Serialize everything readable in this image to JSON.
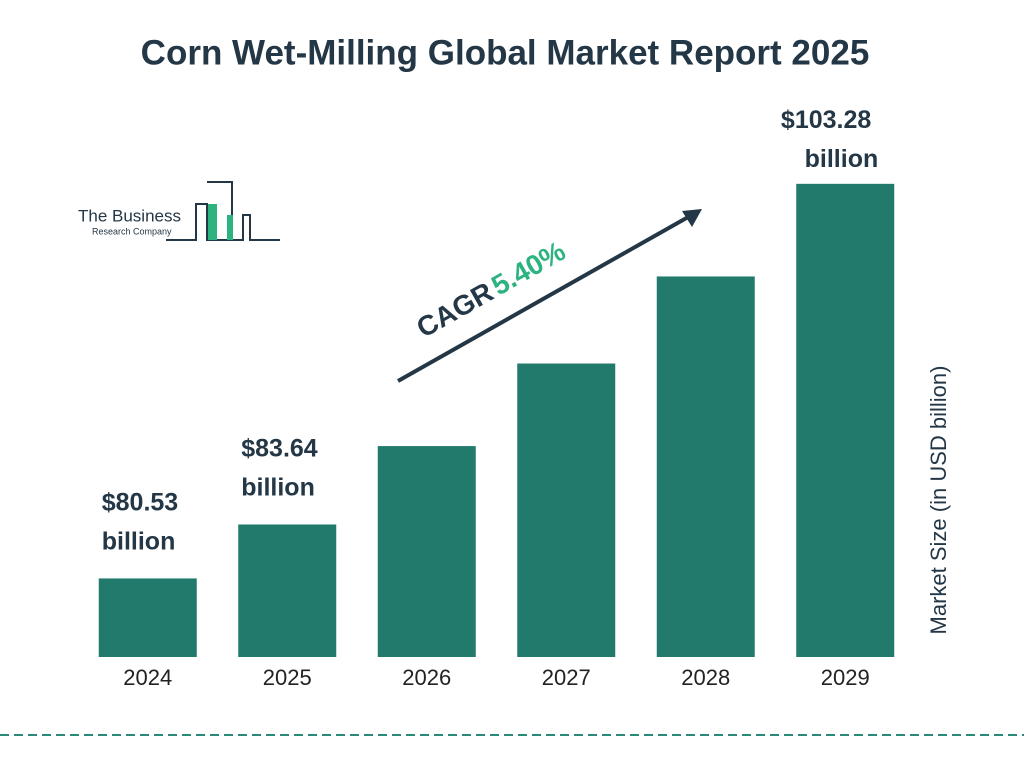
{
  "chart_data": {
    "type": "bar",
    "title": "Corn Wet-Milling Global Market Report 2025",
    "categories": [
      "2024",
      "2025",
      "2026",
      "2027",
      "2028",
      "2029"
    ],
    "values": [
      80.53,
      83.64,
      88.16,
      92.92,
      97.94,
      103.28
    ],
    "value_labels": [
      "$80.53 billion",
      "$83.64 billion",
      null,
      null,
      null,
      "$103.28 billion"
    ],
    "color": "#217a6b",
    "ylim": [
      76,
      105
    ],
    "y_axis_label": "Market Size (in USD billion)",
    "annotation": {
      "label": "CAGR",
      "value": "5.40%"
    }
  },
  "logo": {
    "line1": "The Business",
    "line2": "Research Company"
  }
}
